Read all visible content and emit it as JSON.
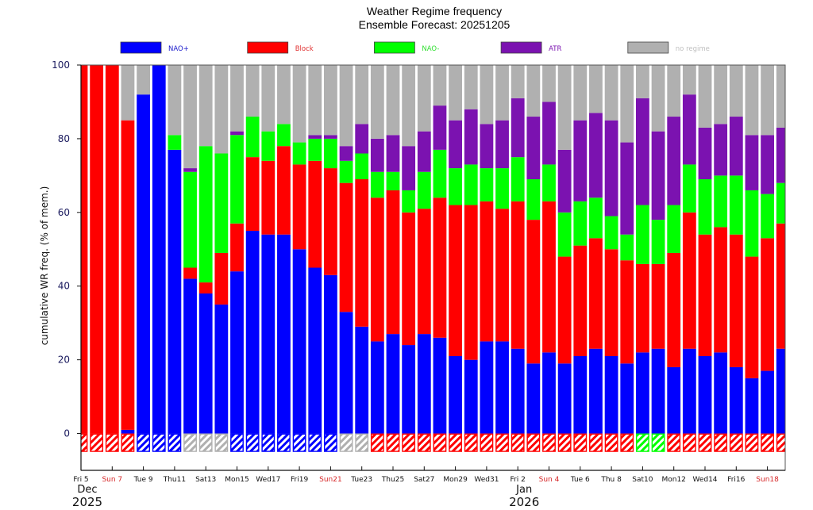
{
  "chart_data": {
    "type": "bar",
    "stacked": true,
    "title": "Weather Regime frequency",
    "subtitle": "Ensemble Forecast: 20251205",
    "xlabel": "",
    "ylabel": "cumulative WR freq. (% of mem.)",
    "ylim": [
      -10,
      100
    ],
    "yticks": [
      0,
      20,
      40,
      60,
      80,
      100
    ],
    "legend_position": "top",
    "legend": [
      {
        "name": "NAO+",
        "color": "#0000ff",
        "text_color": "#1a1acc"
      },
      {
        "name": "Block",
        "color": "#ff0000",
        "text_color": "#e03030"
      },
      {
        "name": "NAO-",
        "color": "#00ff00",
        "text_color": "#33e033"
      },
      {
        "name": "ATR",
        "color": "#7b12b0",
        "text_color": "#7b12b0"
      },
      {
        "name": "no regime",
        "color": "#b0b0b0",
        "text_color": "#c0c0c0"
      }
    ],
    "categories": [
      "2025-12-05",
      "2025-12-06",
      "2025-12-07",
      "2025-12-08",
      "2025-12-09",
      "2025-12-10",
      "2025-12-11",
      "2025-12-12",
      "2025-12-13",
      "2025-12-14",
      "2025-12-15",
      "2025-12-16",
      "2025-12-17",
      "2025-12-18",
      "2025-12-19",
      "2025-12-20",
      "2025-12-21",
      "2025-12-22",
      "2025-12-23",
      "2025-12-24",
      "2025-12-25",
      "2025-12-26",
      "2025-12-27",
      "2025-12-28",
      "2025-12-29",
      "2025-12-30",
      "2025-12-31",
      "2026-01-01",
      "2026-01-02",
      "2026-01-03",
      "2026-01-04",
      "2026-01-05",
      "2026-01-06",
      "2026-01-07",
      "2026-01-08",
      "2026-01-09",
      "2026-01-10",
      "2026-01-11",
      "2026-01-12",
      "2026-01-13",
      "2026-01-14",
      "2026-01-15",
      "2026-01-16",
      "2026-01-17",
      "2026-01-18",
      "2026-01-19"
    ],
    "series": [
      {
        "name": "NAO+",
        "values": [
          0,
          0,
          0,
          1,
          92,
          100,
          77,
          42,
          38,
          35,
          44,
          55,
          54,
          54,
          50,
          45,
          43,
          33,
          29,
          25,
          27,
          24,
          27,
          26,
          21,
          20,
          25,
          25,
          23,
          19,
          22,
          19,
          21,
          23,
          21,
          19,
          22,
          23,
          18,
          23,
          21,
          22,
          18,
          15,
          17,
          23
        ]
      },
      {
        "name": "Block",
        "values": [
          100,
          100,
          100,
          84,
          0,
          0,
          0,
          3,
          3,
          14,
          13,
          20,
          20,
          24,
          23,
          29,
          29,
          35,
          40,
          39,
          39,
          36,
          34,
          38,
          41,
          42,
          38,
          36,
          40,
          39,
          41,
          29,
          30,
          30,
          29,
          28,
          24,
          23,
          31,
          37,
          33,
          34,
          36,
          33,
          36,
          34
        ]
      },
      {
        "name": "NAO-",
        "values": [
          0,
          0,
          0,
          0,
          0,
          0,
          4,
          26,
          37,
          27,
          24,
          11,
          8,
          6,
          6,
          6,
          8,
          6,
          7,
          7,
          5,
          6,
          10,
          13,
          10,
          11,
          9,
          11,
          12,
          11,
          10,
          12,
          12,
          11,
          9,
          7,
          16,
          12,
          13,
          13,
          15,
          14,
          16,
          18,
          12,
          11
        ]
      },
      {
        "name": "ATR",
        "values": [
          0,
          0,
          0,
          0,
          0,
          0,
          0,
          1,
          0,
          0,
          1,
          0,
          0,
          0,
          0,
          1,
          1,
          4,
          8,
          9,
          10,
          12,
          11,
          12,
          13,
          15,
          12,
          13,
          16,
          17,
          17,
          17,
          22,
          23,
          26,
          25,
          29,
          24,
          24,
          19,
          14,
          14,
          16,
          15,
          16,
          15
        ]
      },
      {
        "name": "no regime",
        "values": [
          0,
          0,
          0,
          15,
          8,
          0,
          19,
          28,
          22,
          24,
          18,
          14,
          18,
          16,
          21,
          19,
          19,
          22,
          16,
          20,
          19,
          22,
          18,
          11,
          15,
          12,
          16,
          15,
          9,
          14,
          10,
          23,
          15,
          13,
          15,
          21,
          9,
          18,
          14,
          8,
          17,
          16,
          14,
          19,
          19,
          17
        ]
      }
    ],
    "dominant_regime": [
      "Block",
      "Block",
      "Block",
      "Block",
      "NAO+",
      "NAO+",
      "NAO+",
      "no regime",
      "no regime",
      "no regime",
      "NAO+",
      "NAO+",
      "NAO+",
      "NAO+",
      "NAO+",
      "NAO+",
      "NAO+",
      "no regime",
      "no regime",
      "Block",
      "Block",
      "Block",
      "Block",
      "Block",
      "Block",
      "Block",
      "Block",
      "Block",
      "Block",
      "Block",
      "Block",
      "Block",
      "Block",
      "Block",
      "Block",
      "Block",
      "NAO-",
      "NAO-",
      "Block",
      "Block",
      "Block",
      "Block",
      "Block",
      "Block",
      "Block",
      "Block"
    ],
    "xtick_labels": [
      {
        "label": "Fri 5",
        "day_index": 0,
        "sunday": false
      },
      {
        "label": "Sun 7",
        "day_index": 2,
        "sunday": true
      },
      {
        "label": "Tue 9",
        "day_index": 4,
        "sunday": false
      },
      {
        "label": "Thu11",
        "day_index": 6,
        "sunday": false
      },
      {
        "label": "Sat13",
        "day_index": 8,
        "sunday": false
      },
      {
        "label": "Mon15",
        "day_index": 10,
        "sunday": false
      },
      {
        "label": "Wed17",
        "day_index": 12,
        "sunday": false
      },
      {
        "label": "Fri19",
        "day_index": 14,
        "sunday": false
      },
      {
        "label": "Sun21",
        "day_index": 16,
        "sunday": true
      },
      {
        "label": "Tue23",
        "day_index": 18,
        "sunday": false
      },
      {
        "label": "Thu25",
        "day_index": 20,
        "sunday": false
      },
      {
        "label": "Sat27",
        "day_index": 22,
        "sunday": false
      },
      {
        "label": "Mon29",
        "day_index": 24,
        "sunday": false
      },
      {
        "label": "Wed31",
        "day_index": 26,
        "sunday": false
      },
      {
        "label": "Fri 2",
        "day_index": 28,
        "sunday": false
      },
      {
        "label": "Sun 4",
        "day_index": 30,
        "sunday": true
      },
      {
        "label": "Tue 6",
        "day_index": 32,
        "sunday": false
      },
      {
        "label": "Thu 8",
        "day_index": 34,
        "sunday": false
      },
      {
        "label": "Sat10",
        "day_index": 36,
        "sunday": false
      },
      {
        "label": "Mon12",
        "day_index": 38,
        "sunday": false
      },
      {
        "label": "Wed14",
        "day_index": 40,
        "sunday": false
      },
      {
        "label": "Fri16",
        "day_index": 42,
        "sunday": false
      },
      {
        "label": "Sun18",
        "day_index": 44,
        "sunday": true
      }
    ],
    "month_labels": [
      {
        "month": "Dec",
        "year": "2025",
        "day_index": 0
      },
      {
        "month": "Jan",
        "year": "2026",
        "day_index": 28
      }
    ],
    "colors": {
      "sunday_label": "#d62728",
      "ytick_label": "#1a1a5e",
      "frame": "#555555"
    }
  }
}
